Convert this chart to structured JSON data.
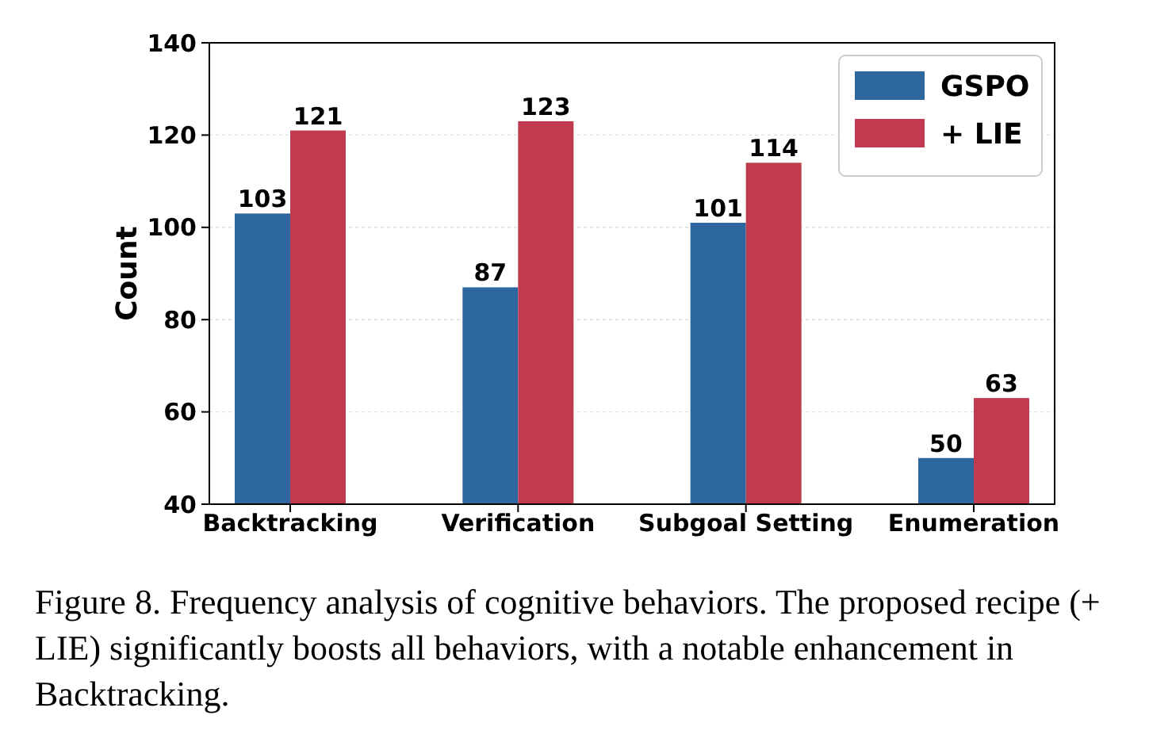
{
  "chart_data": {
    "type": "bar",
    "ylabel": "Count",
    "categories": [
      "Backtracking",
      "Verification",
      "Subgoal Setting",
      "Enumeration"
    ],
    "series": [
      {
        "name": "GSPO",
        "color": "#2e67a0",
        "values": [
          103,
          87,
          101,
          50
        ]
      },
      {
        "name": "+ LIE",
        "color": "#c03a50",
        "values": [
          121,
          123,
          114,
          63
        ]
      }
    ],
    "ylim": [
      40,
      140
    ],
    "yticks": [
      40,
      60,
      80,
      100,
      120,
      140
    ],
    "grid": "y",
    "legend": "top right",
    "data_labels": true,
    "annotations": [
      "Figure 8. Frequency analysis of cognitive behaviors. The proposed recipe (+ LIE) significantly boosts all behaviors, with a notable enhancement in Backtracking."
    ]
  }
}
